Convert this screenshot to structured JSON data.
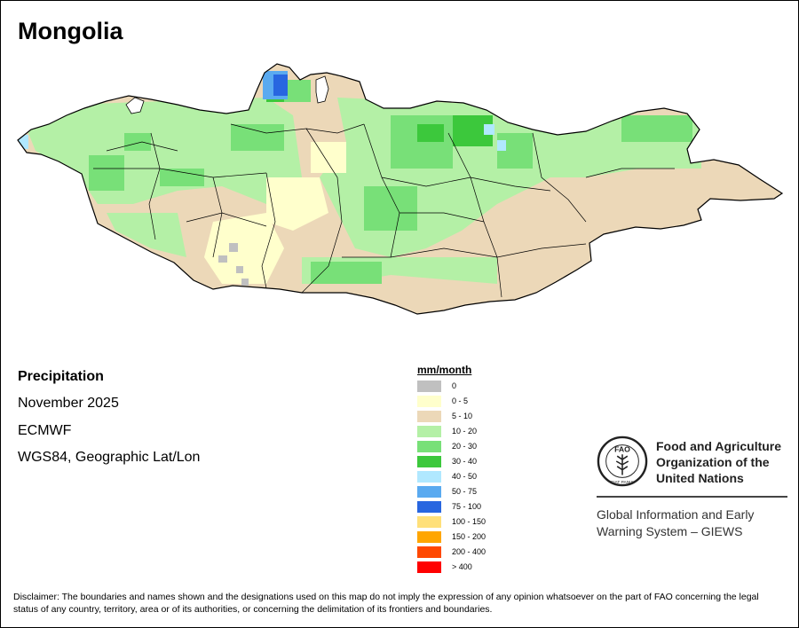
{
  "title": "Mongolia",
  "meta": {
    "variable": "Precipitation",
    "period": "November 2025",
    "model": "ECMWF",
    "projection": "WGS84, Geographic Lat/Lon"
  },
  "legend": {
    "unit": "mm/month",
    "classes": [
      {
        "label": "0",
        "color": "#c0c0c0"
      },
      {
        "label": "0 - 5",
        "color": "#ffffcc"
      },
      {
        "label": "5 - 10",
        "color": "#ecd8b8"
      },
      {
        "label": "10 - 20",
        "color": "#b4f0a6"
      },
      {
        "label": "20 - 30",
        "color": "#78e078"
      },
      {
        "label": "30 - 40",
        "color": "#3cc83c"
      },
      {
        "label": "40 - 50",
        "color": "#b0e8ff"
      },
      {
        "label": "50 - 75",
        "color": "#5aaaf0"
      },
      {
        "label": "75 - 100",
        "color": "#2866e0"
      },
      {
        "label": "100 - 150",
        "color": "#ffe07a"
      },
      {
        "label": "150 - 200",
        "color": "#ffa600"
      },
      {
        "label": "200 - 400",
        "color": "#ff4800"
      },
      {
        "label": "> 400",
        "color": "#ff0000"
      }
    ]
  },
  "organization": {
    "name_lines": [
      "Food and Agriculture",
      "Organization of the",
      "United Nations"
    ],
    "logo_text": "FAO",
    "motto": "FIAT PANIS",
    "system_lines": [
      "Global Information and Early",
      "Warning System – GIEWS"
    ]
  },
  "disclaimer": "Disclaimer: The boundaries and names shown and the designations used on this map do not imply the expression of any opinion whatsoever on the part of FAO concerning the legal status of any country, territory, area or of its authorities, or concerning the delimitation of its frontiers and boundaries."
}
